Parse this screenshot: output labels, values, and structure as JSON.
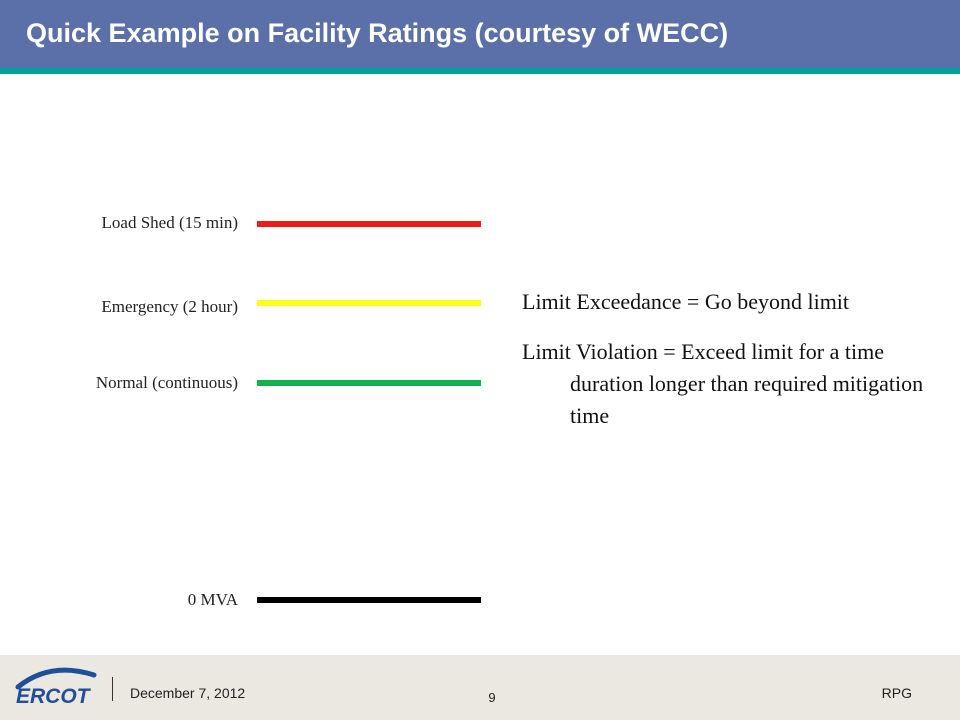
{
  "slide": {
    "title": "Quick Example on Facility Ratings (courtesy of WECC)"
  },
  "ratings": [
    {
      "label": "Load Shed (15 min)",
      "color": "#ee1c1c"
    },
    {
      "label": "Emergency  (2 hour)",
      "color": "#ffff1a"
    },
    {
      "label": "Normal  (continuous)",
      "color": "#12b24a"
    },
    {
      "label": "0 MVA",
      "color": "#000000"
    }
  ],
  "definitions": [
    "Limit Exceedance = Go beyond limit",
    "Limit Violation = Exceed limit for a time duration longer than required mitigation time"
  ],
  "footer": {
    "logo_text": "ERCOT",
    "date": "December 7, 2012",
    "page_number": "9",
    "department": "RPG"
  },
  "colors": {
    "title_bar": "#5b6fa9",
    "title_accent": "#00a29a",
    "footer_bg": "#eae8e0",
    "logo_blue": "#1f4e9b"
  }
}
